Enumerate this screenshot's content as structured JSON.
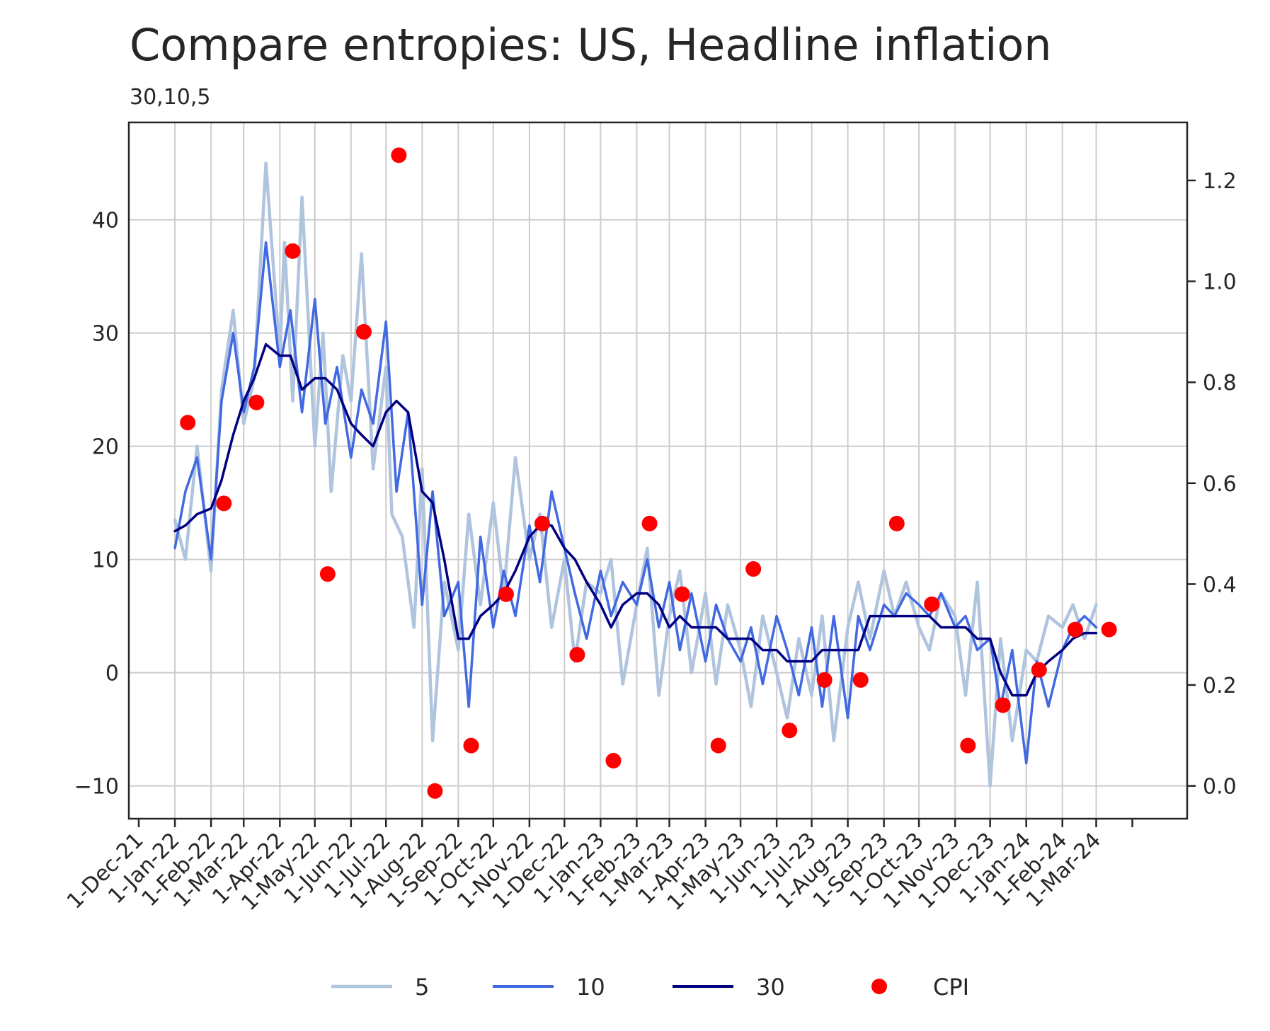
{
  "chart_data": {
    "type": "line",
    "title": "Compare entropies: US, Headline inflation",
    "subtitle": "30,10,5",
    "x_ticks": [
      "1-Dec-21",
      "1-Jan-22",
      "1-Feb-22",
      "1-Mar-22",
      "1-Apr-22",
      "1-May-22",
      "1-Jun-22",
      "1-Jul-22",
      "1-Aug-22",
      "1-Sep-22",
      "1-Oct-22",
      "1-Nov-22",
      "1-Dec-22",
      "1-Jan-23",
      "1-Feb-23",
      "1-Mar-23",
      "1-Apr-23",
      "1-May-23",
      "1-Jun-23",
      "1-Jul-23",
      "1-Aug-23",
      "1-Sep-23",
      "1-Oct-23",
      "1-Nov-23",
      "1-Dec-23",
      "1-Jan-24",
      "1-Feb-24",
      "1-Mar-24"
    ],
    "y_left": {
      "ticks": [
        -10,
        0,
        10,
        20,
        30,
        40
      ],
      "tick_labels": [
        "−10",
        "0",
        "10",
        "20",
        "30",
        "40"
      ],
      "lim": [
        -12.9,
        48.6
      ]
    },
    "y_right": {
      "ticks": [
        0.0,
        0.2,
        0.4,
        0.6,
        0.8,
        1.0,
        1.2
      ],
      "tick_labels": [
        "0.0",
        "0.2",
        "0.4",
        "0.6",
        "0.8",
        "1.0",
        "1.2"
      ],
      "lim": [
        -0.065,
        1.315
      ]
    },
    "grid": true,
    "legend_position": "bottom-center",
    "colors": {
      "s5": "#b0c4de",
      "s10": "#4169e1",
      "s30": "#000080",
      "cpi": "#ff0000"
    },
    "series": [
      {
        "name": "5",
        "axis": "left",
        "x": [
          "2022-01-01",
          "2022-01-10",
          "2022-01-20",
          "2022-02-01",
          "2022-02-10",
          "2022-02-20",
          "2022-03-01",
          "2022-03-10",
          "2022-03-20",
          "2022-04-01",
          "2022-04-05",
          "2022-04-12",
          "2022-04-20",
          "2022-05-01",
          "2022-05-08",
          "2022-05-15",
          "2022-05-25",
          "2022-06-01",
          "2022-06-10",
          "2022-06-20",
          "2022-07-01",
          "2022-07-06",
          "2022-07-15",
          "2022-07-25",
          "2022-08-01",
          "2022-08-10",
          "2022-08-20",
          "2022-09-01",
          "2022-09-10",
          "2022-09-20",
          "2022-10-01",
          "2022-10-10",
          "2022-10-20",
          "2022-11-01",
          "2022-11-10",
          "2022-11-20",
          "2022-12-01",
          "2022-12-10",
          "2022-12-20",
          "2023-01-01",
          "2023-01-10",
          "2023-01-20",
          "2023-02-01",
          "2023-02-10",
          "2023-02-20",
          "2023-03-01",
          "2023-03-10",
          "2023-03-20",
          "2023-04-01",
          "2023-04-10",
          "2023-04-20",
          "2023-05-01",
          "2023-05-10",
          "2023-05-20",
          "2023-06-01",
          "2023-06-10",
          "2023-06-20",
          "2023-07-01",
          "2023-07-10",
          "2023-07-20",
          "2023-08-01",
          "2023-08-10",
          "2023-08-20",
          "2023-09-01",
          "2023-09-10",
          "2023-09-20",
          "2023-10-01",
          "2023-10-10",
          "2023-10-20",
          "2023-11-01",
          "2023-11-10",
          "2023-11-20",
          "2023-12-01",
          "2023-12-10",
          "2023-12-20",
          "2024-01-01",
          "2024-01-10",
          "2024-01-20",
          "2024-02-01",
          "2024-02-10",
          "2024-02-20",
          "2024-03-01"
        ],
        "values": [
          13.5,
          10,
          20,
          9,
          25,
          32,
          22,
          26,
          45,
          28,
          38,
          24,
          42,
          20,
          30,
          16,
          28,
          24,
          37,
          18,
          27,
          14,
          12,
          4,
          18,
          -6,
          8,
          2,
          14,
          6,
          15,
          7,
          19,
          10,
          14,
          4,
          10,
          1,
          8,
          7,
          10,
          -1,
          6,
          11,
          -2,
          5,
          9,
          0,
          7,
          -1,
          6,
          2,
          -3,
          5,
          0,
          -4,
          3,
          -2,
          5,
          -6,
          4,
          8,
          3,
          9,
          5,
          8,
          4,
          2,
          7,
          5,
          -2,
          8,
          -10,
          3,
          -6,
          2,
          1,
          5,
          4,
          6,
          3,
          6
        ]
      },
      {
        "name": "10",
        "axis": "left",
        "x": [
          "2022-01-01",
          "2022-01-10",
          "2022-01-20",
          "2022-02-01",
          "2022-02-10",
          "2022-02-20",
          "2022-03-01",
          "2022-03-10",
          "2022-03-20",
          "2022-04-01",
          "2022-04-10",
          "2022-04-20",
          "2022-05-01",
          "2022-05-10",
          "2022-05-20",
          "2022-06-01",
          "2022-06-10",
          "2022-06-20",
          "2022-07-01",
          "2022-07-10",
          "2022-07-20",
          "2022-08-01",
          "2022-08-10",
          "2022-08-20",
          "2022-09-01",
          "2022-09-10",
          "2022-09-20",
          "2022-10-01",
          "2022-10-10",
          "2022-10-20",
          "2022-11-01",
          "2022-11-10",
          "2022-11-20",
          "2022-12-01",
          "2022-12-10",
          "2022-12-20",
          "2023-01-01",
          "2023-01-10",
          "2023-01-20",
          "2023-02-01",
          "2023-02-10",
          "2023-02-20",
          "2023-03-01",
          "2023-03-10",
          "2023-03-20",
          "2023-04-01",
          "2023-04-10",
          "2023-04-20",
          "2023-05-01",
          "2023-05-10",
          "2023-05-20",
          "2023-06-01",
          "2023-06-10",
          "2023-06-20",
          "2023-07-01",
          "2023-07-10",
          "2023-07-20",
          "2023-08-01",
          "2023-08-10",
          "2023-08-20",
          "2023-09-01",
          "2023-09-10",
          "2023-09-20",
          "2023-10-01",
          "2023-10-10",
          "2023-10-20",
          "2023-11-01",
          "2023-11-10",
          "2023-11-20",
          "2023-12-01",
          "2023-12-10",
          "2023-12-20",
          "2024-01-01",
          "2024-01-10",
          "2024-01-20",
          "2024-02-01",
          "2024-02-10",
          "2024-02-20",
          "2024-03-01"
        ],
        "values": [
          11,
          16,
          19,
          10,
          24,
          30,
          23,
          27,
          38,
          27,
          32,
          23,
          33,
          22,
          27,
          19,
          25,
          22,
          31,
          16,
          23,
          6,
          16,
          5,
          8,
          -3,
          12,
          4,
          9,
          5,
          13,
          8,
          16,
          11,
          7,
          3,
          9,
          5,
          8,
          6,
          10,
          4,
          8,
          2,
          7,
          1,
          6,
          3,
          1,
          4,
          -1,
          5,
          2,
          -2,
          4,
          -3,
          5,
          -4,
          5,
          2,
          6,
          5,
          7,
          6,
          5,
          7,
          4,
          5,
          2,
          3,
          -3,
          2,
          -8,
          1,
          -3,
          2,
          4,
          5,
          4
        ]
      },
      {
        "name": "30",
        "axis": "left",
        "x": [
          "2022-01-01",
          "2022-01-10",
          "2022-01-20",
          "2022-02-01",
          "2022-02-10",
          "2022-02-20",
          "2022-03-01",
          "2022-03-10",
          "2022-03-20",
          "2022-04-01",
          "2022-04-10",
          "2022-04-20",
          "2022-05-01",
          "2022-05-10",
          "2022-05-20",
          "2022-06-01",
          "2022-06-10",
          "2022-06-20",
          "2022-07-01",
          "2022-07-10",
          "2022-07-20",
          "2022-08-01",
          "2022-08-10",
          "2022-08-20",
          "2022-09-01",
          "2022-09-10",
          "2022-09-20",
          "2022-10-01",
          "2022-10-10",
          "2022-10-20",
          "2022-11-01",
          "2022-11-10",
          "2022-11-20",
          "2022-12-01",
          "2022-12-10",
          "2022-12-20",
          "2023-01-01",
          "2023-01-10",
          "2023-01-20",
          "2023-02-01",
          "2023-02-10",
          "2023-02-20",
          "2023-03-01",
          "2023-03-10",
          "2023-03-20",
          "2023-04-01",
          "2023-04-10",
          "2023-04-20",
          "2023-05-01",
          "2023-05-10",
          "2023-05-20",
          "2023-06-01",
          "2023-06-10",
          "2023-06-20",
          "2023-07-01",
          "2023-07-10",
          "2023-07-20",
          "2023-08-01",
          "2023-08-10",
          "2023-08-20",
          "2023-09-01",
          "2023-09-10",
          "2023-09-20",
          "2023-10-01",
          "2023-10-10",
          "2023-10-20",
          "2023-11-01",
          "2023-11-10",
          "2023-11-20",
          "2023-12-01",
          "2023-12-10",
          "2023-12-20",
          "2024-01-01",
          "2024-01-10",
          "2024-01-20",
          "2024-02-01",
          "2024-02-10",
          "2024-02-20",
          "2024-03-01"
        ],
        "values": [
          12.5,
          13,
          14,
          14.5,
          17,
          21,
          24,
          26,
          29,
          28,
          28,
          25,
          26,
          26,
          25,
          22,
          21,
          20,
          23,
          24,
          23,
          16,
          15,
          10,
          3,
          3,
          5,
          6,
          7,
          9,
          12,
          13,
          13,
          11,
          10,
          8,
          6,
          4,
          6,
          7,
          7,
          6,
          4,
          5,
          4,
          4,
          4,
          3,
          3,
          3,
          2,
          2,
          1,
          1,
          1,
          2,
          2,
          2,
          2,
          5,
          5,
          5,
          5,
          5,
          5,
          4,
          4,
          4,
          3,
          3,
          0,
          -2,
          -2,
          0,
          1,
          2,
          3,
          3.5,
          3.5
        ]
      }
    ],
    "cpi": {
      "name": "CPI",
      "axis": "right",
      "x": [
        "2022-01-12",
        "2022-02-12",
        "2022-03-12",
        "2022-04-12",
        "2022-05-12",
        "2022-06-12",
        "2022-07-12",
        "2022-08-12",
        "2022-09-12",
        "2022-10-12",
        "2022-11-12",
        "2022-12-12",
        "2023-01-12",
        "2023-02-12",
        "2023-03-12",
        "2023-04-12",
        "2023-05-12",
        "2023-06-12",
        "2023-07-12",
        "2023-08-12",
        "2023-09-12",
        "2023-10-12",
        "2023-11-12",
        "2023-12-12",
        "2024-01-12",
        "2024-02-12",
        "2024-03-12"
      ],
      "values": [
        0.72,
        0.56,
        0.76,
        1.06,
        0.42,
        0.9,
        1.25,
        -0.01,
        0.08,
        0.38,
        0.52,
        0.26,
        0.05,
        0.52,
        0.38,
        0.08,
        0.43,
        0.11,
        0.21,
        0.21,
        0.52,
        0.36,
        0.08,
        0.16,
        0.23,
        0.31,
        0.31
      ]
    },
    "legend": [
      "5",
      "10",
      "30",
      "CPI"
    ]
  }
}
